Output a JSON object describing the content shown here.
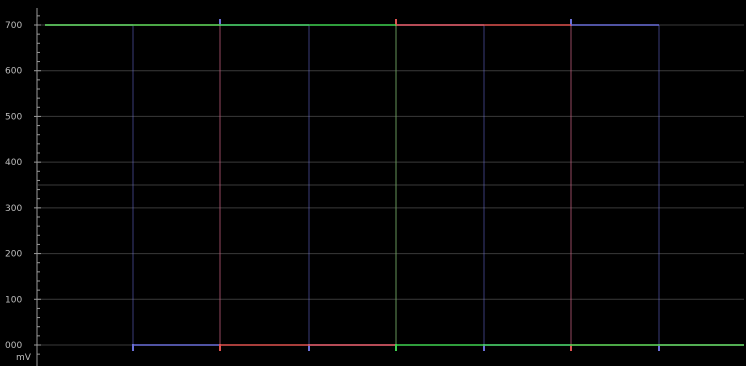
{
  "scope": {
    "unit_label": "mV",
    "y_range": [
      0,
      700
    ],
    "y_ticks": [
      {
        "value": 700,
        "label": "700"
      },
      {
        "value": 600,
        "label": "600"
      },
      {
        "value": 500,
        "label": "500"
      },
      {
        "value": 400,
        "label": "400"
      },
      {
        "value": 300,
        "label": "300"
      },
      {
        "value": 200,
        "label": "200"
      },
      {
        "value": 100,
        "label": "100"
      },
      {
        "value": 0,
        "label": "000"
      }
    ],
    "minor_ticks_per_major": 5,
    "colors": {
      "background": "#000000",
      "graticule": "#3a3a3a",
      "axis": "#9a9a9a",
      "label": "#bdbdbd",
      "red_channel": "#e0524f",
      "green_channel": "#3fd150",
      "blue_channel": "#6a6fd9"
    }
  },
  "chart_data": {
    "type": "line",
    "ylabel": "mV",
    "ylim": [
      0,
      700
    ],
    "grid": true,
    "x_positions_note_omitted": true,
    "series": [
      {
        "channel": "red",
        "segments": [
          {
            "start": 0,
            "end": 1,
            "value": 700
          },
          {
            "start": 1,
            "end": 2,
            "value": 700
          },
          {
            "start": 2,
            "end": 3,
            "value": 0
          },
          {
            "start": 3,
            "end": 4,
            "value": 0
          },
          {
            "start": 4,
            "end": 5,
            "value": 700
          },
          {
            "start": 5,
            "end": 6,
            "value": 700
          },
          {
            "start": 6,
            "end": 7,
            "value": 0
          },
          {
            "start": 7,
            "end": 8,
            "value": 0
          }
        ]
      },
      {
        "channel": "green",
        "segments": [
          {
            "start": 0,
            "end": 1,
            "value": 700
          },
          {
            "start": 1,
            "end": 2,
            "value": 700
          },
          {
            "start": 2,
            "end": 3,
            "value": 700
          },
          {
            "start": 3,
            "end": 4,
            "value": 700
          },
          {
            "start": 4,
            "end": 5,
            "value": 0
          },
          {
            "start": 5,
            "end": 6,
            "value": 0
          },
          {
            "start": 6,
            "end": 7,
            "value": 0
          },
          {
            "start": 7,
            "end": 8,
            "value": 0
          }
        ]
      },
      {
        "channel": "blue",
        "segments": [
          {
            "start": 0,
            "end": 1,
            "value": 700
          },
          {
            "start": 1,
            "end": 2,
            "value": 0
          },
          {
            "start": 2,
            "end": 3,
            "value": 700
          },
          {
            "start": 3,
            "end": 4,
            "value": 0
          },
          {
            "start": 4,
            "end": 5,
            "value": 700
          },
          {
            "start": 5,
            "end": 6,
            "value": 0
          },
          {
            "start": 6,
            "end": 7,
            "value": 700
          },
          {
            "start": 7,
            "end": 8,
            "value": 0
          }
        ]
      }
    ]
  }
}
